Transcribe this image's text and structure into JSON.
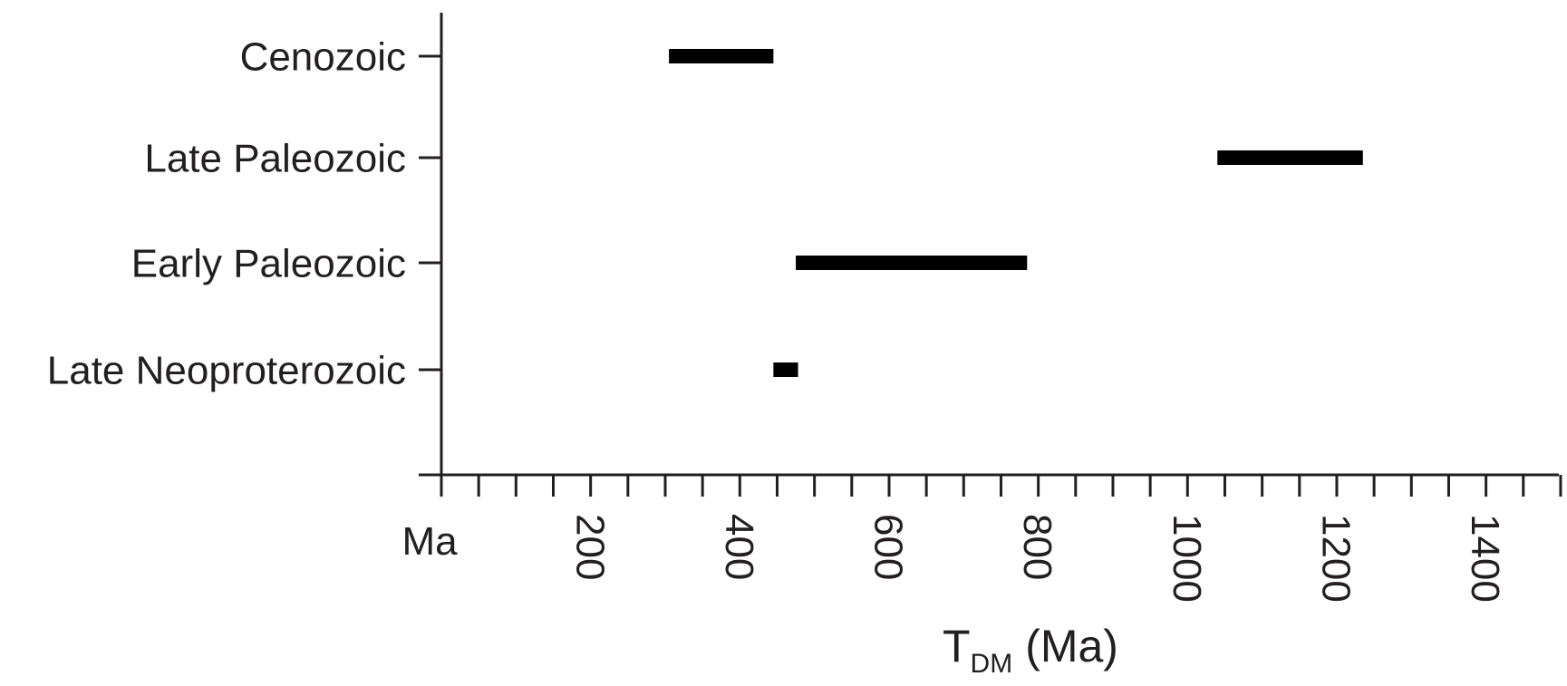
{
  "chart_data": {
    "type": "bar",
    "orientation": "horizontal-range",
    "title": "",
    "categories": [
      "Cenozoic",
      "Late Paleozoic",
      "Early Paleozoic",
      "Late Neoproterozoic"
    ],
    "ranges": [
      {
        "category": "Cenozoic",
        "start": 305,
        "end": 445
      },
      {
        "category": "Late Paleozoic",
        "start": 1040,
        "end": 1235
      },
      {
        "category": "Early Paleozoic",
        "start": 475,
        "end": 785
      },
      {
        "category": "Late Neoproterozoic",
        "start": 445,
        "end": 478
      }
    ],
    "xlabel": {
      "main": "T",
      "subscript": "DM",
      "suffix": "(Ma)"
    },
    "x_origin_label": "Ma",
    "x_tick_labels": [
      "200",
      "400",
      "600",
      "800",
      "1000",
      "1200",
      "1400"
    ],
    "x_tick_values": [
      200,
      400,
      600,
      800,
      1000,
      1200,
      1400
    ],
    "x_minor_step": 50,
    "xlim": [
      0,
      1500
    ],
    "grid": false,
    "legend": "none",
    "bar_color": "#000000",
    "axis_color": "#231f20"
  }
}
